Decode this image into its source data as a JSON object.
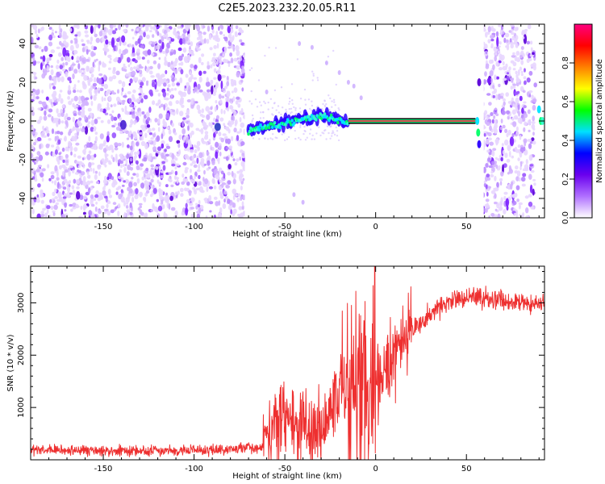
{
  "figure": {
    "title": "C2E5.2023.232.20.05.R11"
  },
  "colors": {
    "snr_line": "#ee3030",
    "cmap": [
      "#ffffff",
      "#b070ff",
      "#6a00ee",
      "#0000ff",
      "#00e0ff",
      "#00ff00",
      "#ffff00",
      "#ff8000",
      "#ff0000",
      "#ff0080"
    ]
  },
  "chart_data": [
    {
      "type": "heatmap",
      "name": "spectrogram",
      "xlabel": "Height of straight line (km)",
      "ylabel": "Frequency (Hz)",
      "xlim": [
        -190,
        93
      ],
      "ylim": [
        -50,
        50
      ],
      "xticks": [
        -150,
        -100,
        -50,
        0,
        50
      ],
      "yticks": [
        -40,
        -20,
        0,
        20,
        40
      ],
      "data_gaps_km": [
        [
          -72,
          -70
        ],
        [
          58,
          59.5
        ]
      ],
      "features": {
        "carrier_line_hz": 0,
        "carrier_km_range": [
          -70,
          55
        ],
        "noise_regions_km": [
          [
            -190,
            -72
          ],
          [
            59,
            88
          ]
        ]
      },
      "colorbar": {
        "label": "Normalized spectral amplitude",
        "min": 0.0,
        "max": 1.0,
        "ticks": [
          0.0,
          0.2,
          0.4,
          0.6,
          0.8
        ]
      }
    },
    {
      "type": "line",
      "name": "snr",
      "xlabel": "Height of straight line (km)",
      "ylabel": "SNR (10 * v/v)",
      "xlim": [
        -190,
        93
      ],
      "ylim": [
        0,
        3700
      ],
      "xticks": [
        -150,
        -100,
        -50,
        0,
        50
      ],
      "yticks": [
        1000,
        2000,
        3000
      ],
      "series": [
        {
          "name": "SNR",
          "x": [
            -190,
            -150,
            -100,
            -75,
            -62,
            -60,
            -50,
            -45,
            -40,
            -35,
            -30,
            -25,
            -20,
            -15,
            -10,
            -5,
            0,
            5,
            10,
            20,
            30,
            40,
            50,
            60,
            70,
            80,
            93
          ],
          "y": [
            180,
            170,
            175,
            215,
            250,
            600,
            700,
            850,
            650,
            450,
            600,
            800,
            1100,
            1450,
            1500,
            1350,
            1450,
            1750,
            2000,
            2450,
            2800,
            3000,
            3100,
            3100,
            3050,
            3000,
            3000
          ]
        }
      ]
    }
  ]
}
